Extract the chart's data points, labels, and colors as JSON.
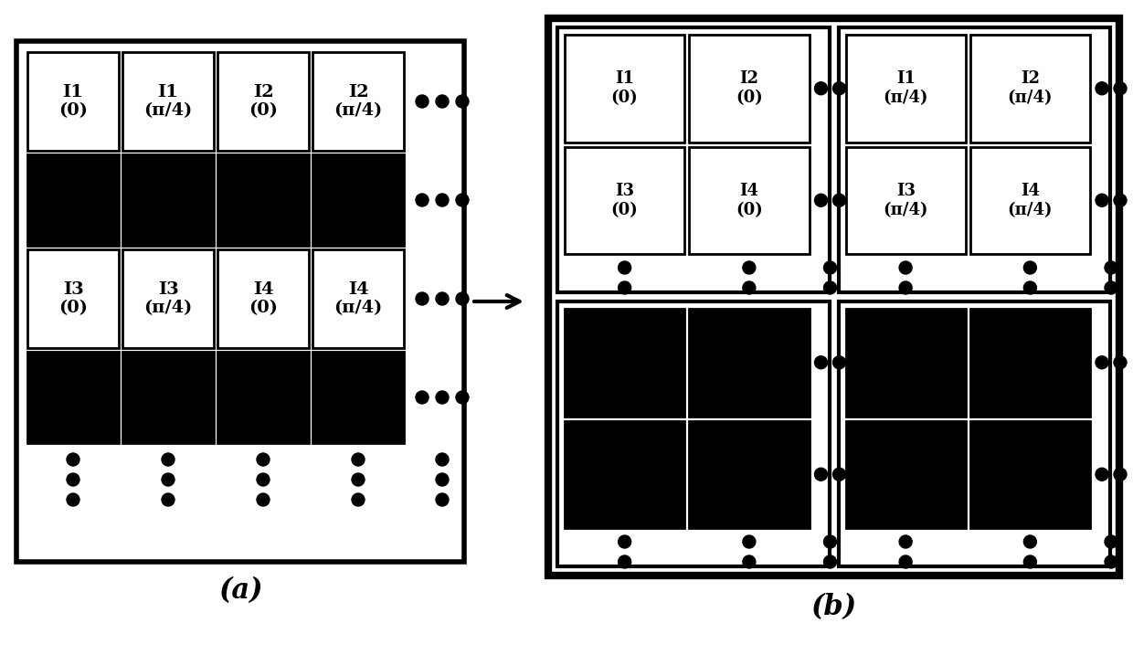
{
  "bg_color": "#ffffff",
  "fig_width": 12.4,
  "fig_height": 7.17,
  "label_a": "(a)",
  "label_b": "(b)",
  "cell_labels_row1": [
    "I1\n(0)",
    "I1\n(π/4)",
    "I2\n(0)",
    "I2\n(π/4)"
  ],
  "cell_labels_row2": [
    "I3\n(0)",
    "I3\n(π/4)",
    "I4\n(0)",
    "I4\n(π/4)"
  ],
  "b_top_left_labels": [
    [
      "I1\n(0)",
      "I2\n(0)"
    ],
    [
      "I3\n(0)",
      "I4\n(0)"
    ]
  ],
  "b_top_right_labels": [
    [
      "I1\n(π/4)",
      "I2\n(π/4)"
    ],
    [
      "I3\n(π/4)",
      "I4\n(π/4)"
    ]
  ]
}
